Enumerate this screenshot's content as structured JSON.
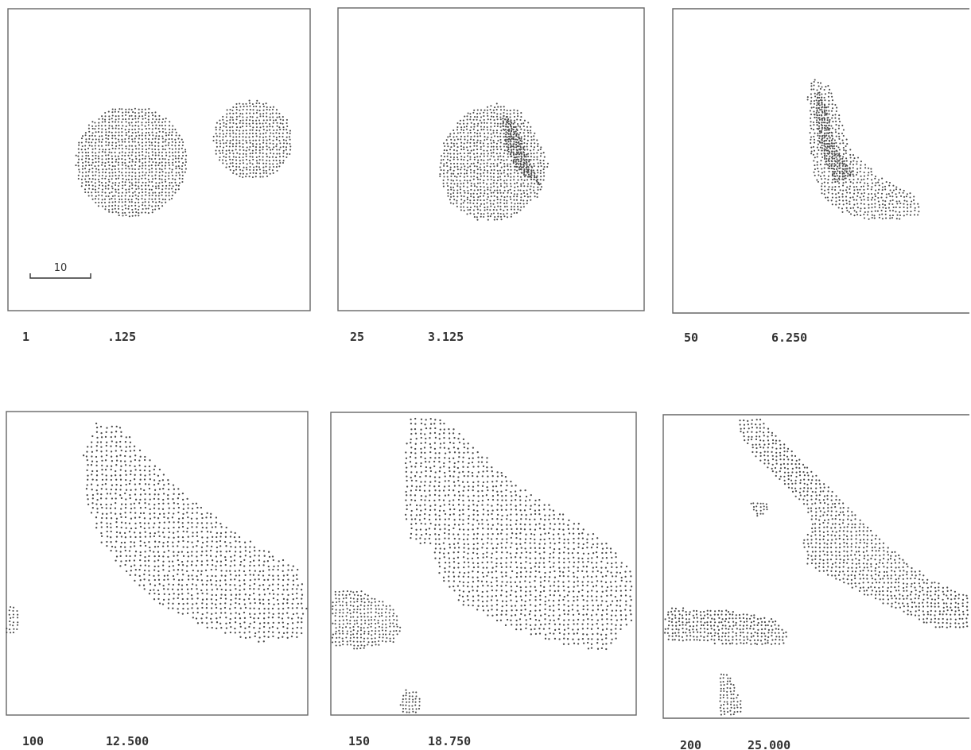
{
  "scale_bar": {
    "label": "10"
  },
  "panels": [
    {
      "step": "1",
      "time": ".125"
    },
    {
      "step": "25",
      "time": "3.125"
    },
    {
      "step": "50",
      "time": "6.250"
    },
    {
      "step": "100",
      "time": "12.500"
    },
    {
      "step": "150",
      "time": "18.750"
    },
    {
      "step": "200",
      "time": "25.000"
    }
  ]
}
